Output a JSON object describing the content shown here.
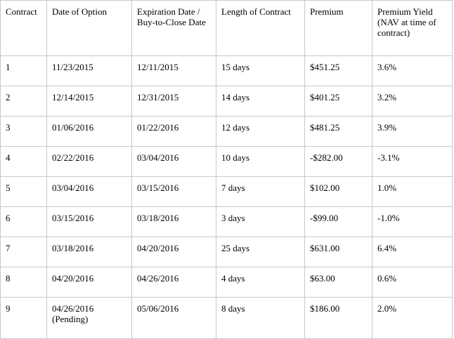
{
  "table": {
    "headers": [
      "Contract",
      "Date of Option",
      "Expiration Date / Buy-to-Close Date",
      "Length of Contract",
      "Premium",
      "Premium Yield (NAV at time of contract)"
    ],
    "rows": [
      [
        "1",
        "11/23/2015",
        "12/11/2015",
        "15 days",
        "$451.25",
        "3.6%"
      ],
      [
        "2",
        "12/14/2015",
        "12/31/2015",
        "14 days",
        "$401.25",
        "3.2%"
      ],
      [
        "3",
        "01/06/2016",
        "01/22/2016",
        "12 days",
        "$481.25",
        "3.9%"
      ],
      [
        "4",
        "02/22/2016",
        "03/04/2016",
        "10 days",
        "-$282.00",
        "-3.1%"
      ],
      [
        "5",
        "03/04/2016",
        "03/15/2016",
        "7 days",
        "$102.00",
        "1.0%"
      ],
      [
        "6",
        "03/15/2016",
        "03/18/2016",
        "3 days",
        "-$99.00",
        "-1.0%"
      ],
      [
        "7",
        "03/18/2016",
        "04/20/2016",
        "25 days",
        "$631.00",
        "6.4%"
      ],
      [
        "8",
        "04/20/2016",
        "04/26/2016",
        "4 days",
        "$63.00",
        "0.6%"
      ],
      [
        "9",
        "04/26/2016 (Pending)",
        "05/06/2016",
        "8 days",
        "$186.00",
        "2.0%"
      ]
    ]
  },
  "colors": {
    "border": "#c8c8c8",
    "text": "#000000",
    "background": "#ffffff"
  }
}
